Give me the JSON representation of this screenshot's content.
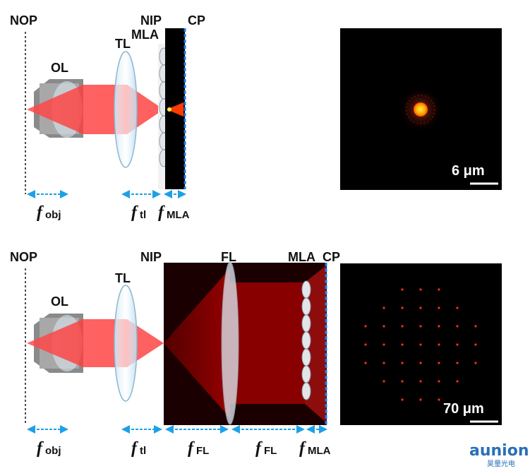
{
  "top": {
    "labels": {
      "nop": "NOP",
      "ol": "OL",
      "tl": "TL",
      "nip": "NIP",
      "mla": "MLA",
      "cp": "CP"
    },
    "focal": [
      {
        "f": "f",
        "sub": "obj"
      },
      {
        "f": "f",
        "sub": "tl"
      },
      {
        "f": "f",
        "sub": "MLA"
      }
    ],
    "psf_scale": "6 μm"
  },
  "bottom": {
    "labels": {
      "nop": "NOP",
      "ol": "OL",
      "tl": "TL",
      "nip": "NIP",
      "fl": "FL",
      "mla": "MLA",
      "cp": "CP"
    },
    "focal": [
      {
        "f": "f",
        "sub": "obj"
      },
      {
        "f": "f",
        "sub": "tl"
      },
      {
        "f": "f",
        "sub": "FL"
      },
      {
        "f": "f",
        "sub": "FL"
      },
      {
        "f": "f",
        "sub": "MLA"
      }
    ],
    "psf_scale": "70 μm"
  },
  "watermark": {
    "text": "aunion",
    "sub": "昊量光电"
  },
  "colors": {
    "arrow": "#1ea0e6",
    "beam": "#ff3b3b",
    "cp_line": "#1e78e6"
  }
}
